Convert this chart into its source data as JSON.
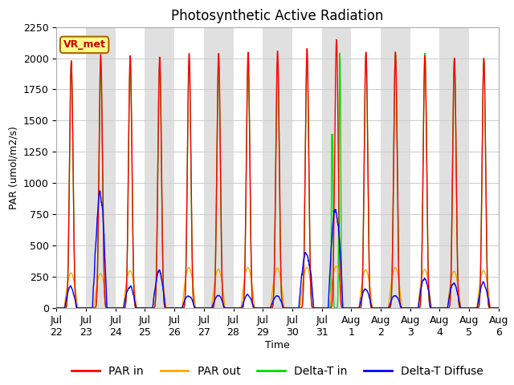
{
  "title": "Photosynthetic Active Radiation",
  "ylabel": "PAR (umol/m2/s)",
  "xlabel": "Time",
  "ylim": [
    0,
    2250
  ],
  "legend_label": "VR_met",
  "legend_entries": [
    "PAR in",
    "PAR out",
    "Delta-T in",
    "Delta-T Diffuse"
  ],
  "colors": {
    "par_in": "#ff0000",
    "par_out": "#ffa500",
    "delta_t_in": "#00dd00",
    "delta_t_diffuse": "#0000ff"
  },
  "background_color": "#ffffff",
  "band_color": "#e0e0e0",
  "num_days": 15,
  "points_per_day": 144,
  "x_tick_labels_line1": [
    "Jul",
    "Jul",
    "Jul",
    "Jul",
    "Jul",
    "Jul",
    "Jul",
    "Jul",
    "Jul",
    "Jul",
    "Aug",
    "Aug",
    "Aug",
    "Aug",
    "Aug",
    "Aug"
  ],
  "x_tick_labels_line2": [
    "22",
    "23",
    "24",
    "25",
    "26",
    "27",
    "28",
    "29",
    "30",
    "31",
    "1",
    "2",
    "3",
    "4",
    "5",
    "6"
  ],
  "par_in_peaks": [
    1980,
    2030,
    2020,
    2010,
    2040,
    2040,
    2050,
    2060,
    2080,
    2150,
    2050,
    2050,
    2020,
    2000,
    2000
  ],
  "par_out_peaks": [
    280,
    275,
    300,
    295,
    325,
    310,
    325,
    320,
    325,
    335,
    305,
    325,
    310,
    295,
    300
  ],
  "delta_t_in_peaks": [
    1960,
    1900,
    1940,
    1950,
    1940,
    1950,
    1950,
    1970,
    1990,
    2040,
    2040,
    2040,
    2040,
    1990,
    1990
  ],
  "delta_t_diffuse_peaks": [
    160,
    870,
    170,
    290,
    100,
    100,
    100,
    100,
    450,
    790,
    150,
    100,
    240,
    200,
    195
  ],
  "delta_t_in_special_day": 9,
  "delta_t_in_special_peak": 1390,
  "title_fontsize": 12,
  "axis_fontsize": 9,
  "tick_fontsize": 9,
  "legend_fontsize": 10
}
